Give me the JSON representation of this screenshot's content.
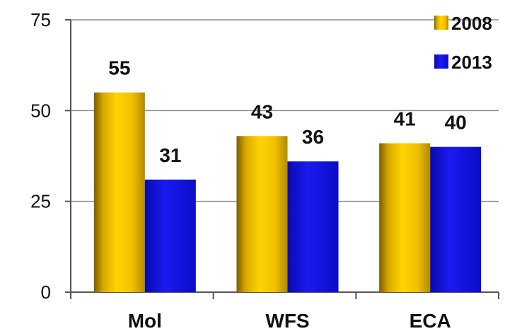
{
  "chart_data": {
    "type": "bar",
    "categories": [
      "Mol",
      "WFS",
      "ECA"
    ],
    "series": [
      {
        "name": "2008",
        "values": [
          55,
          43,
          41
        ],
        "color": "#F5C400"
      },
      {
        "name": "2013",
        "values": [
          31,
          36,
          40
        ],
        "color": "#1414E6"
      }
    ],
    "data_labels": [
      [
        "55",
        "43",
        "41"
      ],
      [
        "31",
        "36",
        "40"
      ]
    ],
    "ylim": [
      0,
      75
    ],
    "yticks": [
      0,
      25,
      50,
      75
    ],
    "ytick_labels": [
      "0",
      "25",
      "50",
      "75"
    ],
    "grid": true,
    "legend_position": "top-right",
    "title": "",
    "xlabel": "",
    "ylabel": ""
  }
}
